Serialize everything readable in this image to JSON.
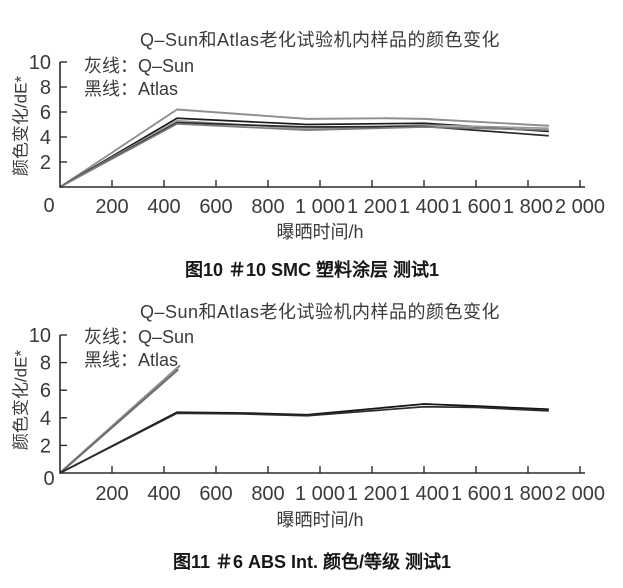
{
  "chart_data": [
    {
      "type": "line",
      "title": "Q–Sun和Atlas老化试验机内样品的颜色变化",
      "xlabel": "曝晒时间/h",
      "ylabel": "颜色变化/dE*",
      "caption": "图10  ＃10 SMC 塑料涂层 测试1",
      "legend": [
        {
          "text": "灰线：Q–Sun",
          "color": "#8f8f8f"
        },
        {
          "text": "黑线：Atlas",
          "color": "#1c1c1c"
        }
      ],
      "xlim": [
        0,
        2000
      ],
      "ylim": [
        0,
        10
      ],
      "xticks": [
        200,
        400,
        600,
        800,
        1000,
        1200,
        1400,
        1600,
        1800,
        2000
      ],
      "xtick_labels": [
        "200",
        "400",
        "600",
        "800",
        "1 000",
        "1 200",
        "1 400",
        "1 600",
        "1 800",
        "2 000"
      ],
      "yticks": [
        2,
        4,
        6,
        8,
        10
      ],
      "ytick_labels": [
        "2",
        "4",
        "6",
        "8",
        "10"
      ],
      "origin_label": "0",
      "grid": false,
      "legend_position": "top-left-inside",
      "series": [
        {
          "name": "Q-Sun sample 1",
          "color": "#8f8f8f",
          "width": 1.9,
          "x": [
            0,
            450,
            950,
            1250,
            1400,
            1880
          ],
          "y": [
            0,
            6.2,
            5.45,
            5.5,
            5.45,
            4.9
          ]
        },
        {
          "name": "Atlas sample 1",
          "color": "#1c1c1c",
          "width": 1.7,
          "x": [
            0,
            450,
            950,
            1400,
            1880
          ],
          "y": [
            0,
            5.5,
            5.0,
            5.1,
            4.45
          ]
        },
        {
          "name": "Q-Sun sample 2",
          "color": "#9b9b9b",
          "width": 1.7,
          "x": [
            0,
            450,
            950,
            1400,
            1880
          ],
          "y": [
            0,
            5.3,
            4.65,
            4.95,
            4.7
          ]
        },
        {
          "name": "Atlas sample 2",
          "color": "#2a2a2a",
          "width": 1.7,
          "x": [
            0,
            450,
            950,
            1400,
            1880
          ],
          "y": [
            0,
            5.15,
            4.8,
            4.85,
            4.1
          ]
        },
        {
          "name": "Q-Sun sample 3",
          "color": "#7d7d7d",
          "width": 1.7,
          "x": [
            0,
            450,
            950,
            1400,
            1880
          ],
          "y": [
            0,
            5.05,
            4.55,
            4.8,
            4.55
          ]
        }
      ]
    },
    {
      "type": "line",
      "title": "Q–Sun和Atlas老化试验机内样品的颜色变化",
      "xlabel": "曝晒时间/h",
      "ylabel": "颜色变化/dE*",
      "caption": "图11  ＃6 ABS Int. 颜色/等级 测试1",
      "legend": [
        {
          "text": "灰线：Q–Sun",
          "color": "#8f8f8f"
        },
        {
          "text": "黑线：Atlas",
          "color": "#1c1c1c"
        }
      ],
      "xlim": [
        0,
        2000
      ],
      "ylim": [
        0,
        10
      ],
      "xticks": [
        200,
        400,
        600,
        800,
        1000,
        1200,
        1400,
        1600,
        1800,
        2000
      ],
      "xtick_labels": [
        "200",
        "400",
        "600",
        "800",
        "1 000",
        "1 200",
        "1 400",
        "1 600",
        "1 800",
        "2 000"
      ],
      "yticks": [
        2,
        4,
        6,
        8,
        10
      ],
      "ytick_labels": [
        "2",
        "4",
        "6",
        "8",
        "10"
      ],
      "origin_label": "0",
      "grid": false,
      "legend_position": "top-left-inside",
      "series": [
        {
          "name": "Q-Sun sample 1 (truncated)",
          "color": "#8f8f8f",
          "width": 2.3,
          "x": [
            0,
            462
          ],
          "y": [
            0,
            7.8
          ]
        },
        {
          "name": "Q-Sun sample 2 (truncated)",
          "color": "#6e6e6e",
          "width": 2.0,
          "x": [
            0,
            455
          ],
          "y": [
            0,
            7.5
          ]
        },
        {
          "name": "Atlas sample 1",
          "color": "#161616",
          "width": 1.8,
          "x": [
            0,
            450,
            700,
            950,
            1400,
            1600,
            1880
          ],
          "y": [
            0,
            4.4,
            4.35,
            4.22,
            5.0,
            4.85,
            4.62
          ]
        },
        {
          "name": "Atlas sample 2",
          "color": "#2c2c2c",
          "width": 1.7,
          "x": [
            0,
            450,
            700,
            950,
            1400,
            1600,
            1880
          ],
          "y": [
            0,
            4.33,
            4.28,
            4.15,
            4.8,
            4.75,
            4.5
          ]
        }
      ]
    }
  ]
}
